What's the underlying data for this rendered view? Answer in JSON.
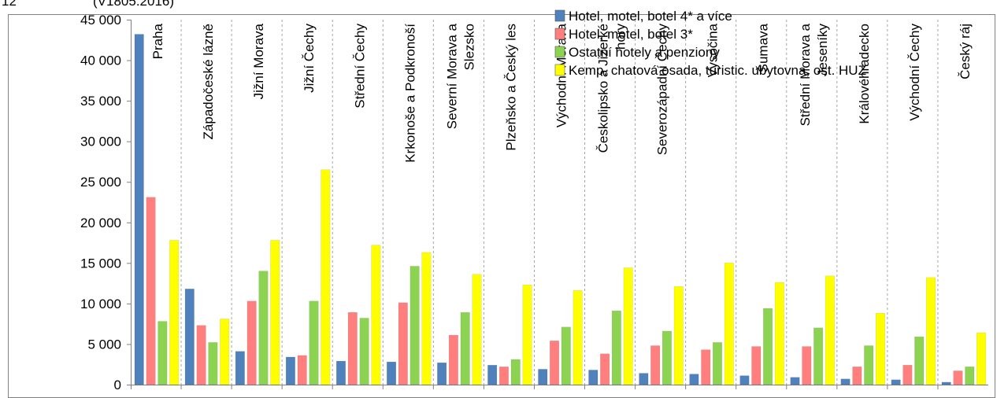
{
  "header": {
    "left_text": "12",
    "right_text": "(V1805.2016)"
  },
  "chart_data": {
    "type": "bar",
    "categories": [
      [
        "Praha"
      ],
      [
        "Západočeské lázně"
      ],
      [
        "Jižní Morava"
      ],
      [
        "Jižní Čechy"
      ],
      [
        "Střední Čechy"
      ],
      [
        "Krkonoše a Podkronoší"
      ],
      [
        "Severní Morava a",
        "Slezsko"
      ],
      [
        "Plzeňsko a Český les"
      ],
      [
        "Východní Morava"
      ],
      [
        "Českolipsko a Jizerké",
        "hory"
      ],
      [
        "Severozápadní Čechy"
      ],
      [
        "Vysočina"
      ],
      [
        "Šumava"
      ],
      [
        "Střední Morava a",
        "Jeseníky"
      ],
      [
        "Královéhradecko"
      ],
      [
        "Východní Čechy"
      ],
      [
        "Český ráj"
      ]
    ],
    "series": [
      {
        "name": "Hotel, motel, botel 4* a více",
        "color": "#4F81BD",
        "values": [
          43200,
          11800,
          4100,
          3400,
          2900,
          2800,
          2700,
          2400,
          1900,
          1800,
          1400,
          1300,
          1100,
          900,
          700,
          600,
          300
        ]
      },
      {
        "name": "Hotel, motel, botel 3*",
        "color": "#FF7F7F",
        "values": [
          23100,
          7300,
          10300,
          3600,
          8900,
          10100,
          6100,
          2200,
          5400,
          3800,
          4800,
          4300,
          4700,
          4700,
          2200,
          2400,
          1700
        ]
      },
      {
        "name": "Ostatní hotely a penziony",
        "color": "#8CD352",
        "values": [
          7800,
          5200,
          14000,
          10300,
          8200,
          14600,
          8900,
          3100,
          7100,
          9100,
          6600,
          5200,
          9400,
          7000,
          4800,
          5900,
          2200
        ]
      },
      {
        "name": "Kemp, chatová osada, turistic. ubytovna, ost. HUZ",
        "color": "#FFFF00",
        "values": [
          17800,
          8100,
          17800,
          26500,
          17200,
          16300,
          13600,
          12300,
          11600,
          14400,
          12100,
          15000,
          12600,
          13400,
          8800,
          13200,
          6400
        ]
      }
    ],
    "y_ticks": [
      "0",
      "5 000",
      "10 000",
      "15 000",
      "20 000",
      "25 000",
      "30 000",
      "35 000",
      "40 000",
      "45 000"
    ],
    "ylim": [
      0,
      45000
    ],
    "legend_position": "top-right",
    "category_label_position": "rotated-inside-plot",
    "category_separators": "dashed",
    "grid": false
  }
}
